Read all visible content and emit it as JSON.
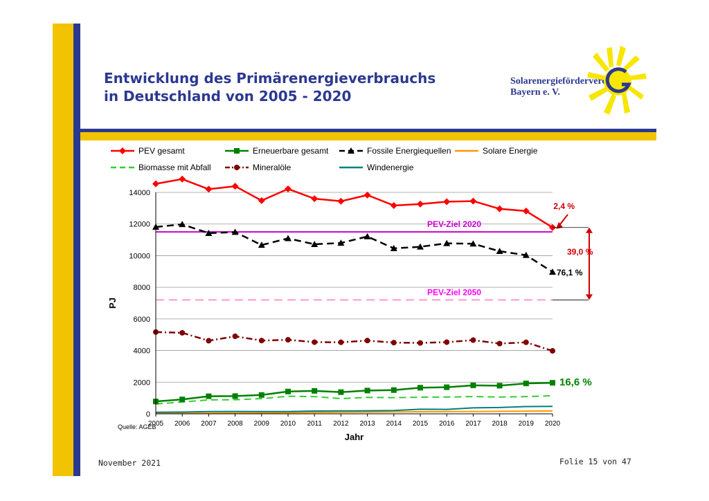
{
  "slide": {
    "title_line1": "Entwicklung des Primärenergieverbrauchs",
    "title_line2": "in Deutschland von 2005 - 2020",
    "logo_line1": "Solarenergieförderverein",
    "logo_line2": "Bayern e. V.",
    "footer_date": "November 2021",
    "footer_page": "Folie 15 von 47",
    "source": "Quelle: AGEB"
  },
  "colors": {
    "brand_blue": "#2b3990",
    "brand_yellow": "#f2c300"
  },
  "chart_data": {
    "type": "line",
    "xlabel": "Jahr",
    "ylabel": "PJ",
    "ylim": [
      0,
      14000
    ],
    "yticks": [
      0,
      2000,
      4000,
      6000,
      8000,
      10000,
      12000,
      14000
    ],
    "grid": true,
    "legend_position": "top",
    "x": [
      2005,
      2006,
      2007,
      2008,
      2009,
      2010,
      2011,
      2012,
      2013,
      2014,
      2015,
      2016,
      2017,
      2018,
      2019,
      2020
    ],
    "series": [
      {
        "name": "PEV gesamt",
        "color": "#ff0000",
        "marker": "diamond",
        "dash": "solid",
        "values": [
          14540,
          14840,
          14200,
          14390,
          13480,
          14220,
          13600,
          13440,
          13830,
          13170,
          13260,
          13410,
          13450,
          12960,
          12820,
          11780
        ]
      },
      {
        "name": "Erneuerbare gesamt",
        "color": "#008000",
        "marker": "square",
        "dash": "solid",
        "values": [
          780,
          910,
          1110,
          1120,
          1190,
          1410,
          1450,
          1370,
          1470,
          1500,
          1650,
          1680,
          1800,
          1780,
          1920,
          1960
        ]
      },
      {
        "name": "Fossile Energiequellen",
        "color": "#000000",
        "marker": "triangle",
        "dash": "dashed",
        "values": [
          11810,
          11980,
          11420,
          11490,
          10670,
          11090,
          10720,
          10800,
          11210,
          10460,
          10560,
          10780,
          10750,
          10280,
          10030,
          8970
        ]
      },
      {
        "name": "Solare Energie",
        "color": "#ff9900",
        "marker": "none",
        "dash": "solid",
        "values": [
          20,
          30,
          40,
          50,
          60,
          70,
          80,
          100,
          110,
          120,
          130,
          140,
          150,
          160,
          170,
          180
        ]
      },
      {
        "name": "Biomasse mit Abfall",
        "color": "#33cc33",
        "marker": "none",
        "dash": "dashed",
        "values": [
          620,
          750,
          880,
          890,
          960,
          1110,
          1090,
          960,
          1040,
          1020,
          1050,
          1060,
          1090,
          1060,
          1090,
          1140
        ]
      },
      {
        "name": "Mineralöle",
        "color": "#800000",
        "marker": "circle",
        "dash": "dashdot",
        "values": [
          5170,
          5120,
          4620,
          4900,
          4630,
          4680,
          4530,
          4520,
          4630,
          4500,
          4480,
          4530,
          4660,
          4440,
          4520,
          3980
        ]
      },
      {
        "name": "Windenergie",
        "color": "#008080",
        "marker": "none",
        "dash": "solid",
        "values": [
          100,
          110,
          140,
          145,
          140,
          140,
          175,
          185,
          190,
          210,
          290,
          280,
          380,
          400,
          460,
          470
        ]
      }
    ],
    "reference_lines": [
      {
        "label": "PEV-Ziel 2020",
        "value": 11500,
        "color": "#cc00cc",
        "dash": "solid"
      },
      {
        "label": "PEV-Ziel 2050",
        "value": 7200,
        "color": "#ff99cc",
        "dash": "dashed"
      }
    ],
    "annotations": {
      "pev_reduction": "2,4 %",
      "goal_gap": "39,0 %",
      "fossil_share": "76,1 %",
      "renewable_share": "16,6 %"
    }
  }
}
